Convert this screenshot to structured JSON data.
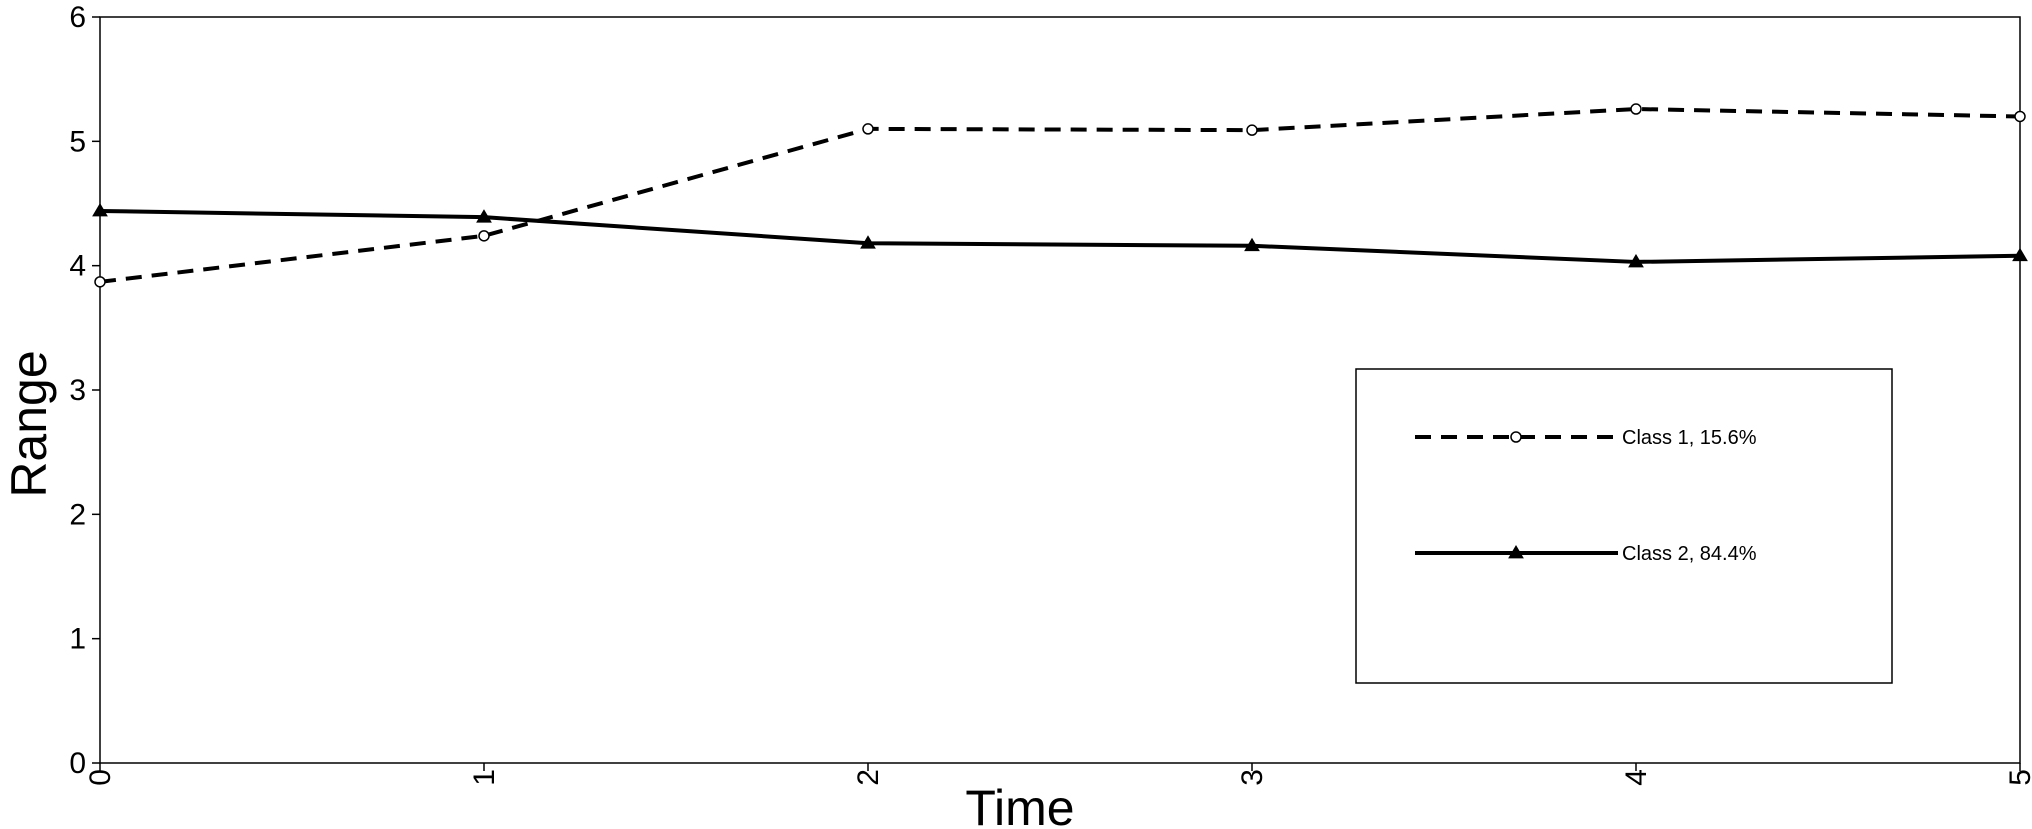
{
  "chart_data": {
    "type": "line",
    "xlabel": "Time",
    "ylabel": "Range",
    "xlim": [
      0,
      5
    ],
    "ylim": [
      0,
      6
    ],
    "x_ticks": [
      "0",
      "1",
      "2",
      "3",
      "4",
      "5"
    ],
    "y_ticks": [
      "0",
      "1",
      "2",
      "3",
      "4",
      "5",
      "6"
    ],
    "x_tick_rotation": "vertical",
    "grid": false,
    "legend_position": "center-right",
    "x": [
      0,
      1,
      2,
      3,
      4,
      5
    ],
    "series": [
      {
        "name": "Class 1, 15.6%",
        "values": [
          3.87,
          4.24,
          5.1,
          5.09,
          5.26,
          5.2
        ],
        "line_style": "dashed",
        "marker": "open-circle",
        "color": "#000000"
      },
      {
        "name": "Class 2, 84.4%",
        "values": [
          4.44,
          4.39,
          4.18,
          4.16,
          4.03,
          4.08
        ],
        "line_style": "solid",
        "marker": "filled-triangle",
        "color": "#000000"
      }
    ]
  }
}
